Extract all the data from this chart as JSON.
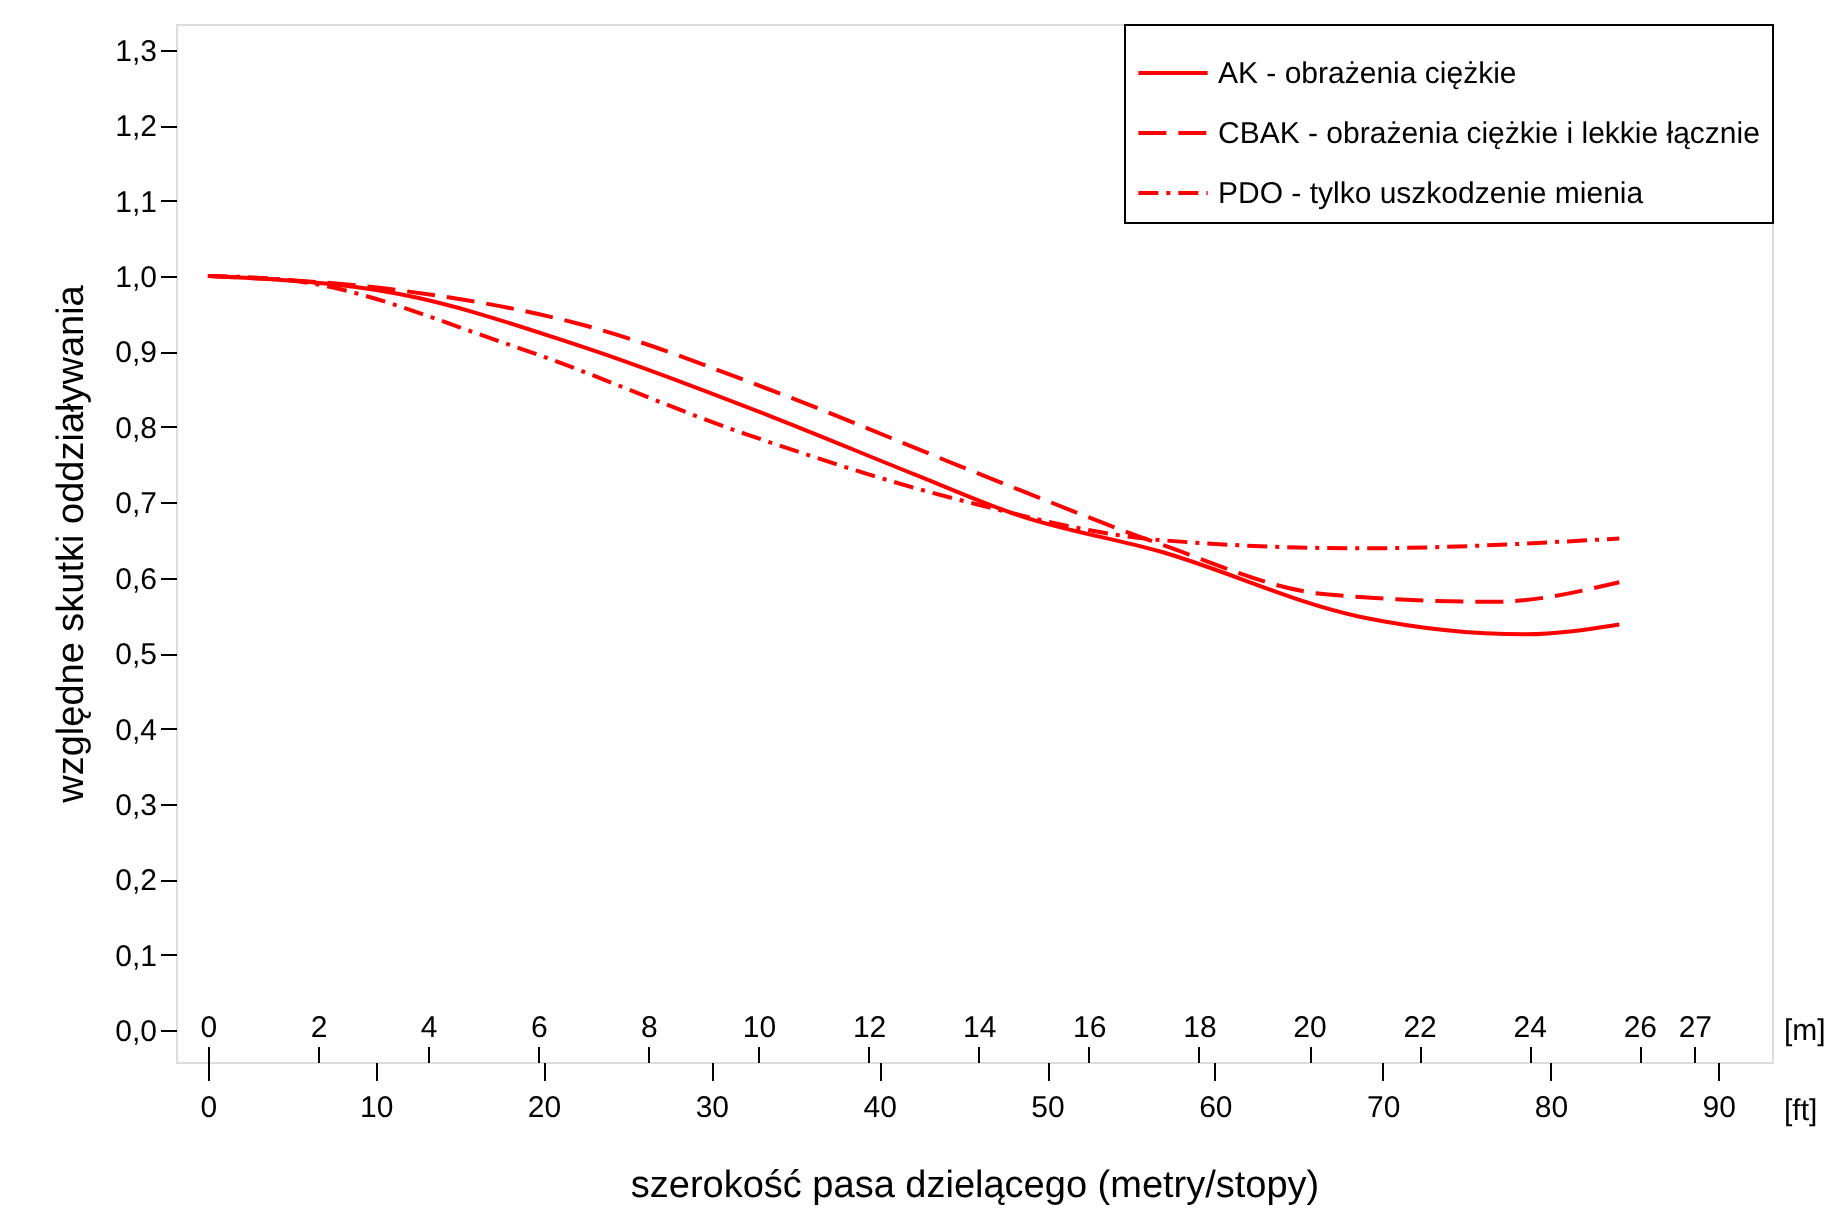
{
  "chart_data": {
    "type": "line",
    "xlabel": "szerokość pasa dzielącego (metry/stopy)",
    "ylabel": "względne skutki oddziaływania",
    "series": [
      {
        "name": "AK - obrażenia ciężkie",
        "color": "#ff0000",
        "line_style": "solid",
        "x": [
          0,
          11.4,
          22.2,
          34.1,
          42.1,
          48.4,
          56.7,
          68.7,
          78.5,
          84.1
        ],
        "values": [
          1.0,
          0.976,
          0.907,
          0.809,
          0.737,
          0.682,
          0.635,
          0.548,
          0.525,
          0.538
        ]
      },
      {
        "name": "CBAK - obrażenia ciężkie i lekkie łącznie",
        "color": "#ff0000",
        "line_style": "dashed",
        "x": [
          0,
          11.4,
          22.2,
          34.1,
          44.8,
          48.4,
          56.7,
          66.6,
          76.6,
          84.1
        ],
        "values": [
          1.0,
          0.981,
          0.936,
          0.844,
          0.748,
          0.716,
          0.645,
          0.578,
          0.568,
          0.594
        ]
      },
      {
        "name": "PDO - tylko uszkodzenie mienia",
        "color": "#ff0000",
        "line_style": "dashdot",
        "x": [
          0,
          4.6,
          18.2,
          32.1,
          44.8,
          56.7,
          68.7,
          84.1
        ],
        "values": [
          1.0,
          0.995,
          0.907,
          0.79,
          0.703,
          0.65,
          0.639,
          0.652
        ]
      }
    ],
    "xlim": [
      -1.9,
      93.2
    ],
    "xticks": [
      0,
      10,
      20,
      30,
      40,
      50,
      60,
      70,
      80,
      90
    ],
    "x2lim": [
      -0.58,
      28.41
    ],
    "x2ticks": [
      0,
      2,
      4,
      6,
      8,
      10,
      12,
      14,
      16,
      18,
      20,
      22,
      24,
      26,
      27
    ],
    "ylim": [
      -0.042,
      1.334
    ],
    "yticks": [
      {
        "value": 0,
        "label": "0,0"
      },
      {
        "value": 0.1,
        "label": "0,1"
      },
      {
        "value": 0.2,
        "label": "0,2"
      },
      {
        "value": 0.3,
        "label": "0,3"
      },
      {
        "value": 0.4,
        "label": "0,4"
      },
      {
        "value": 0.5,
        "label": "0,5"
      },
      {
        "value": 0.6,
        "label": "0,6"
      },
      {
        "value": 0.7,
        "label": "0,7"
      },
      {
        "value": 0.8,
        "label": "0,8"
      },
      {
        "value": 0.9,
        "label": "0,9"
      },
      {
        "value": 1.0,
        "label": "1,0"
      },
      {
        "value": 1.1,
        "label": "1,1"
      },
      {
        "value": 1.2,
        "label": "1,2"
      },
      {
        "value": 1.3,
        "label": "1,3"
      }
    ],
    "annotations": [
      "[m]",
      "[ft]"
    ],
    "grid": false,
    "legend": "top right",
    "marker": "none"
  }
}
